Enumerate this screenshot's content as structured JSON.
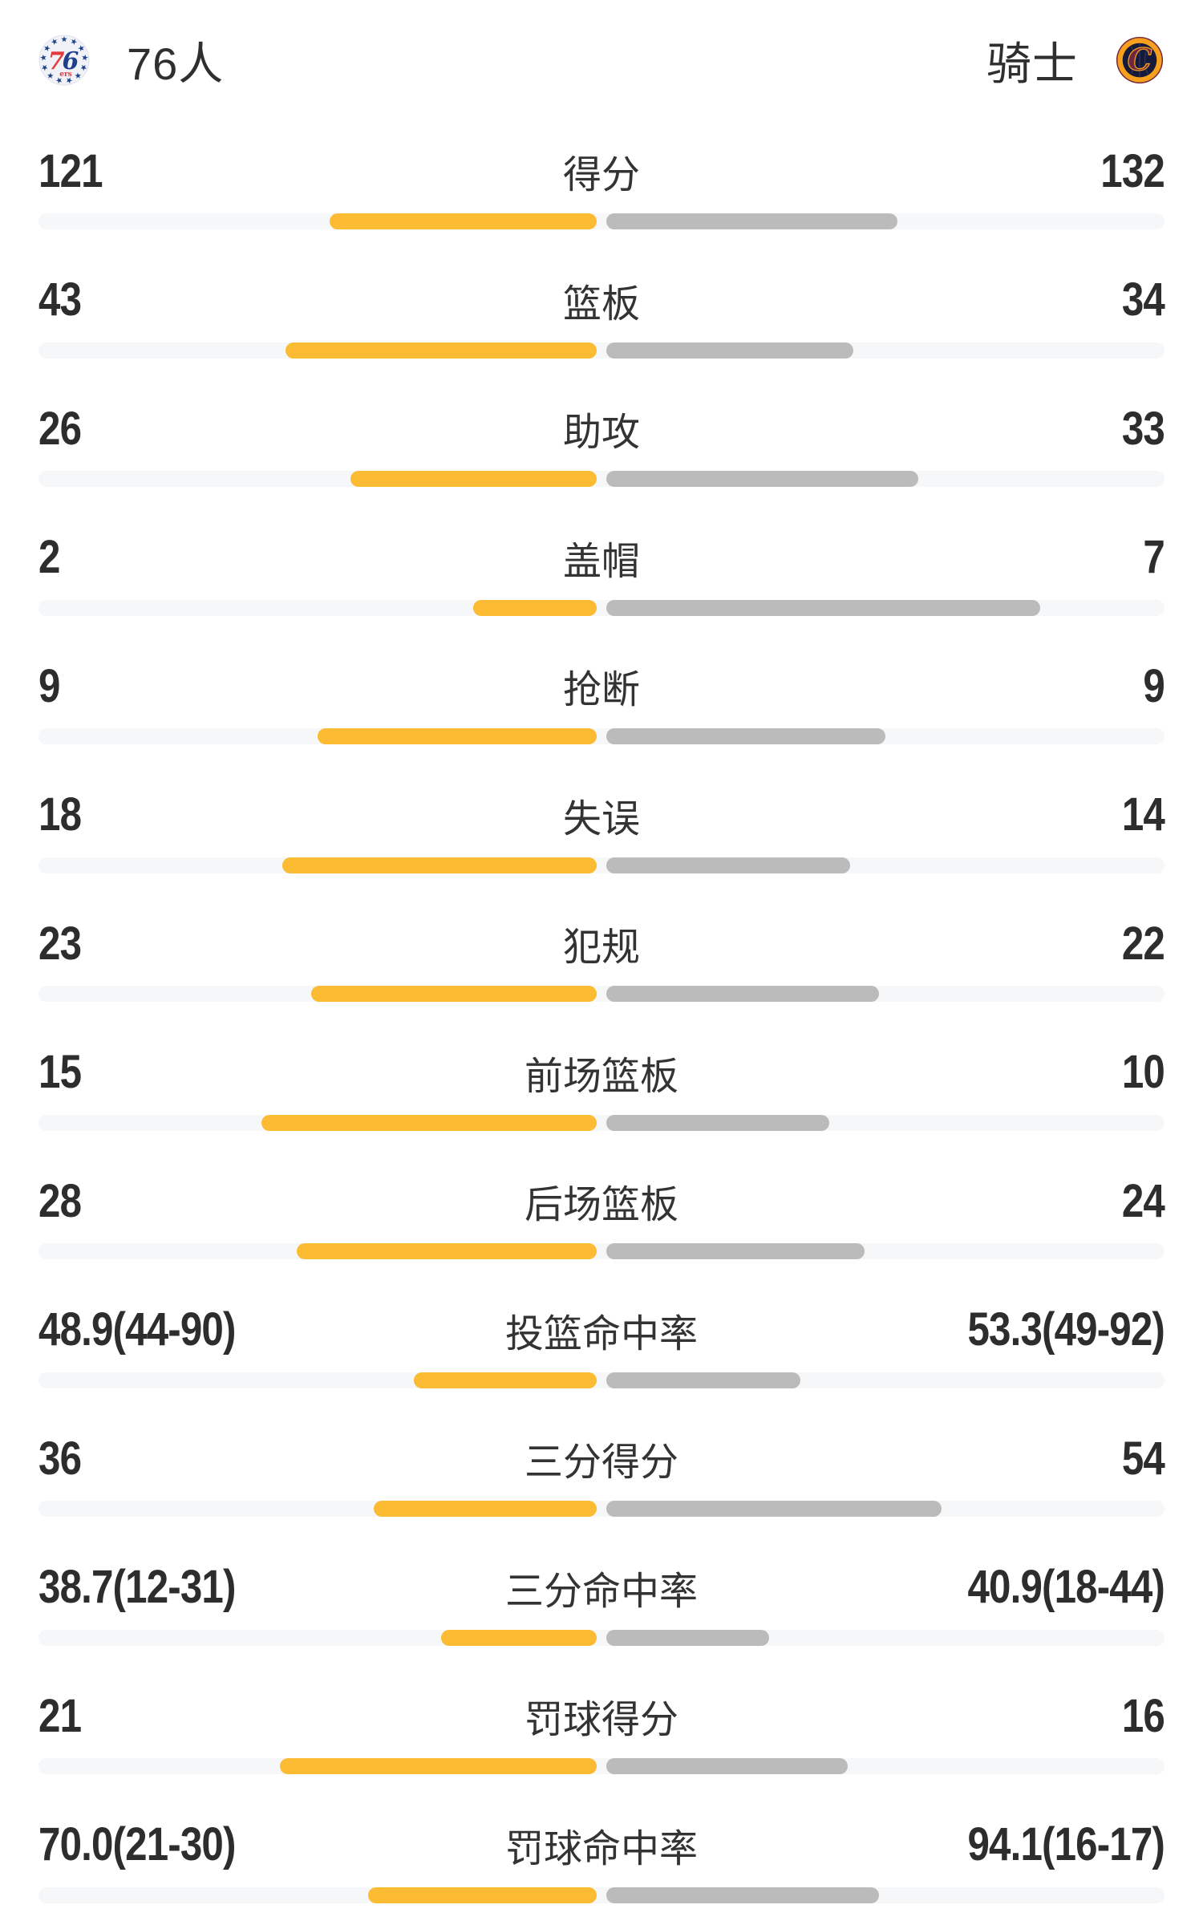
{
  "header": {
    "left_team": {
      "name": "76人",
      "logo_icon": "philadelphia-76ers-logo"
    },
    "right_team": {
      "name": "骑士",
      "logo_icon": "cleveland-cavaliers-logo"
    }
  },
  "colors": {
    "left_bar": "#fbbc34",
    "right_bar": "#bbbbbb",
    "track": "#f6f7f9",
    "text": "#303030",
    "sixers_red": "#e03a3e",
    "sixers_blue": "#1d428a",
    "cavs_wine": "#6f263d",
    "cavs_gold": "#f7a01d",
    "cavs_navy": "#161a3a"
  },
  "chart_data": {
    "type": "bar",
    "orientation": "horizontal-paired-from-center",
    "legend_position": "header",
    "series_names": [
      "76人",
      "骑士"
    ],
    "stats": [
      {
        "label": "得分",
        "left_display": "121",
        "right_display": "132",
        "left_value": 121,
        "right_value": 132,
        "left_frac": 0.478,
        "right_frac": 0.522
      },
      {
        "label": "篮板",
        "left_display": "43",
        "right_display": "34",
        "left_value": 43,
        "right_value": 34,
        "left_frac": 0.558,
        "right_frac": 0.442
      },
      {
        "label": "助攻",
        "left_display": "26",
        "right_display": "33",
        "left_value": 26,
        "right_value": 33,
        "left_frac": 0.441,
        "right_frac": 0.559
      },
      {
        "label": "盖帽",
        "left_display": "2",
        "right_display": "7",
        "left_value": 2,
        "right_value": 7,
        "left_frac": 0.222,
        "right_frac": 0.778
      },
      {
        "label": "抢断",
        "left_display": "9",
        "right_display": "9",
        "left_value": 9,
        "right_value": 9,
        "left_frac": 0.5,
        "right_frac": 0.5
      },
      {
        "label": "失误",
        "left_display": "18",
        "right_display": "14",
        "left_value": 18,
        "right_value": 14,
        "left_frac": 0.563,
        "right_frac": 0.437
      },
      {
        "label": "犯规",
        "left_display": "23",
        "right_display": "22",
        "left_value": 23,
        "right_value": 22,
        "left_frac": 0.511,
        "right_frac": 0.489
      },
      {
        "label": "前场篮板",
        "left_display": "15",
        "right_display": "10",
        "left_value": 15,
        "right_value": 10,
        "left_frac": 0.6,
        "right_frac": 0.4
      },
      {
        "label": "后场篮板",
        "left_display": "28",
        "right_display": "24",
        "left_value": 28,
        "right_value": 24,
        "left_frac": 0.538,
        "right_frac": 0.462
      },
      {
        "label": "投篮命中率",
        "left_display": "48.9(44-90)",
        "right_display": "53.3(49-92)",
        "left_value": 48.9,
        "right_value": 53.3,
        "left_frac": 0.328,
        "right_frac": 0.348
      },
      {
        "label": "三分得分",
        "left_display": "36",
        "right_display": "54",
        "left_value": 36,
        "right_value": 54,
        "left_frac": 0.4,
        "right_frac": 0.6
      },
      {
        "label": "三分命中率",
        "left_display": "38.7(12-31)",
        "right_display": "40.9(18-44)",
        "left_value": 38.7,
        "right_value": 40.9,
        "left_frac": 0.279,
        "right_frac": 0.291
      },
      {
        "label": "罚球得分",
        "left_display": "21",
        "right_display": "16",
        "left_value": 21,
        "right_value": 16,
        "left_frac": 0.568,
        "right_frac": 0.432
      },
      {
        "label": "罚球命中率",
        "left_display": "70.0(21-30)",
        "right_display": "94.1(16-17)",
        "left_value": 70.0,
        "right_value": 94.1,
        "left_frac": 0.41,
        "right_frac": 0.488
      }
    ]
  }
}
